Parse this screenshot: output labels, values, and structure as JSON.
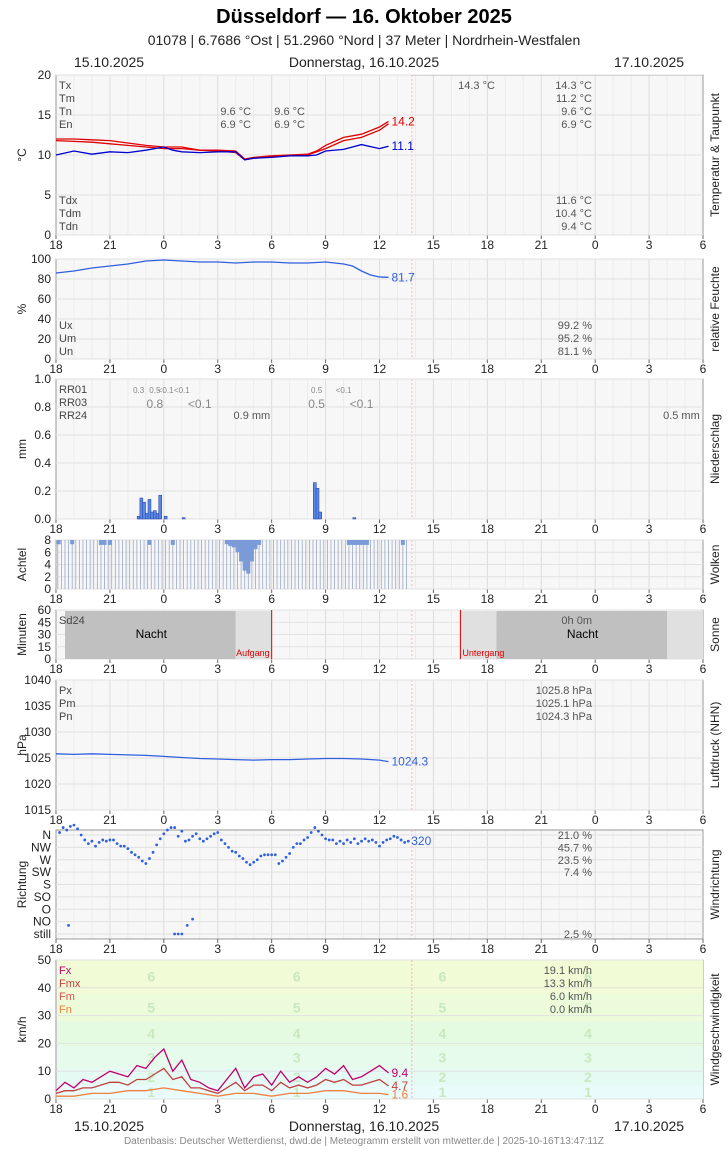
{
  "header": {
    "title": "Düsseldorf  —  16. Oktober 2025",
    "subtitle": "01078  |  6.7686 °Ost  |  51.2960 °Nord  |  37 Meter  |  Nordrhein-Westfalen",
    "date_left": "15.10.2025",
    "date_center": "Donnerstag, 16.10.2025",
    "date_right": "17.10.2025"
  },
  "footer": "Datenbasis: Deutscher Wetterdienst, dwd.de | Meteogramm erstellt von mtwetter.de | 2025-10-16T13:47:11Z",
  "x_axis": {
    "hour_ticks": [
      "18",
      "21",
      "0",
      "3",
      "6",
      "9",
      "12",
      "15",
      "18",
      "21",
      "0",
      "3",
      "6"
    ],
    "range_hours": [
      0,
      36
    ],
    "now_hours": 19.8
  },
  "colors": {
    "max": "#e00000",
    "dew": "#0000cc",
    "line_blue": "#3060e0",
    "bar_blue": "#5b86e5",
    "cloud_bar": "#7b9ad8",
    "night": "#bdbdbd",
    "wind_fx": "#c0006b",
    "wind_fmx": "#c04040",
    "wind_fm": "#e05050",
    "wind_fn": "#f08040"
  },
  "chart_data": [
    {
      "type": "line",
      "panel": "Temperatur & Taupunkt",
      "ylabel": "°C",
      "ylim": [
        0,
        20
      ],
      "yticks": [
        "0",
        "5",
        "10",
        "15",
        "20"
      ],
      "labels_left_top": [
        "Tx",
        "Tm",
        "Tn",
        "En"
      ],
      "labels_left_bottom": [
        "Tdx",
        "Tdm",
        "Tdn"
      ],
      "values_right_top": [
        "14.3 °C",
        "11.2 °C",
        "9.6 °C",
        "6.9 °C"
      ],
      "values_right_bottom": [
        "11.6 °C",
        "10.4 °C",
        "9.4 °C"
      ],
      "extra_labels": [
        {
          "text": "14.3 °C",
          "x": 23.4,
          "row": 0
        },
        {
          "text": "9.6 °C",
          "x": 10.0,
          "row": 2
        },
        {
          "text": "9.6 °C",
          "x": 13.0,
          "row": 2
        },
        {
          "text": "6.9 °C",
          "x": 10.0,
          "row": 3
        },
        {
          "text": "6.9 °C",
          "x": 13.0,
          "row": 3
        }
      ],
      "series": [
        {
          "name": "Temperatur",
          "color": "#e00000",
          "end_label": "14.2",
          "x": [
            0,
            1,
            2,
            3,
            4,
            5,
            6,
            7,
            7.5,
            8,
            9,
            10,
            10.5,
            11,
            12,
            13,
            14,
            14.5,
            15,
            16,
            17,
            18,
            18.5
          ],
          "y": [
            12.0,
            12.0,
            11.9,
            11.8,
            11.5,
            11.2,
            11.0,
            11.0,
            10.8,
            10.6,
            10.6,
            10.5,
            9.5,
            9.7,
            9.9,
            10.0,
            10.1,
            10.5,
            11.2,
            12.2,
            12.6,
            13.5,
            14.2
          ]
        },
        {
          "name": "Temperatur Min",
          "color": "#e00000",
          "x": [
            0,
            1,
            2,
            3,
            4,
            5,
            6,
            7,
            8,
            9,
            10,
            10.5,
            11,
            12,
            13,
            14,
            15,
            16,
            17,
            18,
            18.5
          ],
          "y": [
            11.8,
            11.7,
            11.6,
            11.4,
            11.2,
            11.0,
            10.8,
            10.8,
            10.6,
            10.5,
            10.3,
            9.4,
            9.6,
            9.8,
            9.9,
            10.0,
            10.8,
            11.8,
            12.2,
            13.1,
            13.9
          ]
        },
        {
          "name": "Taupunkt",
          "color": "#0000cc",
          "end_label": "11.1",
          "x": [
            0,
            1,
            2,
            3,
            4,
            5,
            6,
            6.5,
            7,
            8,
            9,
            10,
            10.5,
            11,
            12,
            13,
            14,
            14.5,
            15,
            16,
            17,
            18,
            18.5
          ],
          "y": [
            10.0,
            10.5,
            10.1,
            10.4,
            10.3,
            10.6,
            11.0,
            10.6,
            10.4,
            10.3,
            10.4,
            10.4,
            9.4,
            9.6,
            9.7,
            9.9,
            9.9,
            10.0,
            10.5,
            10.7,
            11.3,
            10.8,
            11.1
          ]
        }
      ]
    },
    {
      "type": "line",
      "panel": "relative Feuchte",
      "ylabel": "%",
      "ylim": [
        0,
        100
      ],
      "yticks": [
        "0",
        "20",
        "40",
        "60",
        "80",
        "100"
      ],
      "labels_left_bottom": [
        "Ux",
        "Um",
        "Un"
      ],
      "values_right_bottom": [
        "99.2 %",
        "95.2 %",
        "81.1 %"
      ],
      "series": [
        {
          "name": "relative Feuchte",
          "color": "#3060e0",
          "end_label": "81.7",
          "x": [
            0,
            1,
            2,
            3,
            4,
            5,
            6,
            7,
            8,
            9,
            10,
            11,
            12,
            13,
            14,
            15,
            16,
            16.5,
            17,
            17.5,
            18,
            18.5
          ],
          "y": [
            86,
            88,
            91,
            93,
            95,
            98,
            99,
            98,
            97,
            97,
            96,
            97,
            97,
            96,
            96,
            97,
            95,
            93,
            88,
            84,
            82,
            81.7
          ]
        }
      ]
    },
    {
      "type": "bar",
      "panel": "Niederschlag",
      "ylabel": "mm",
      "ylim": [
        0,
        1.0
      ],
      "yticks": [
        "0.0",
        "0.2",
        "0.4",
        "0.6",
        "0.8",
        "1.0"
      ],
      "labels_left_top": [
        "RR01",
        "RR03",
        "RR24"
      ],
      "small_labels": [
        {
          "text": "0.3",
          "x": 4.6
        },
        {
          "text": "0.5",
          "x": 5.5
        },
        {
          "text": "<0.1",
          "x": 6.1
        },
        {
          "text": "<0.1",
          "x": 7.0
        },
        {
          "text": "0.5",
          "x": 14.5
        },
        {
          "text": "<0.1",
          "x": 16.0
        }
      ],
      "rr03_labels": [
        {
          "text": "0.8",
          "x": 5.5
        },
        {
          "text": "<0.1",
          "x": 8.0
        },
        {
          "text": "0.5",
          "x": 14.5
        },
        {
          "text": "<0.1",
          "x": 17.0
        }
      ],
      "rr24_labels": [
        {
          "text": "0.9 mm",
          "x": 10.9
        },
        {
          "text": "0.5 mm",
          "x": 34.8
        }
      ],
      "x": [
        4.6,
        4.75,
        4.9,
        5.05,
        5.2,
        5.35,
        5.5,
        5.65,
        5.8,
        6.1,
        7.1,
        14.4,
        14.55,
        14.7,
        16.6
      ],
      "values": [
        0.02,
        0.15,
        0.12,
        0.04,
        0.14,
        0.05,
        0.06,
        0.04,
        0.17,
        0.02,
        0.01,
        0.26,
        0.22,
        0.05,
        0.01
      ]
    },
    {
      "type": "bar",
      "panel": "Wolken",
      "ylabel": "Achtel",
      "ylim": [
        0,
        8
      ],
      "yticks": [
        "0",
        "2",
        "4",
        "6",
        "8"
      ],
      "x_end": 19.5,
      "full_value": 8,
      "reduced": [
        {
          "x": 0.15,
          "y": 7.3
        },
        {
          "x": 0.9,
          "y": 7.3
        },
        {
          "x": 2.5,
          "y": 7.2
        },
        {
          "x": 2.7,
          "y": 7.2
        },
        {
          "x": 3.0,
          "y": 7.2
        },
        {
          "x": 5.2,
          "y": 7.2
        },
        {
          "x": 6.5,
          "y": 7.2
        },
        {
          "x": 9.5,
          "y": 7.3
        },
        {
          "x": 9.7,
          "y": 7.0
        },
        {
          "x": 9.9,
          "y": 6.8
        },
        {
          "x": 10.1,
          "y": 6.0
        },
        {
          "x": 10.3,
          "y": 4.5
        },
        {
          "x": 10.5,
          "y": 3.0
        },
        {
          "x": 10.7,
          "y": 2.5
        },
        {
          "x": 10.9,
          "y": 4.5
        },
        {
          "x": 11.1,
          "y": 6.5
        },
        {
          "x": 11.3,
          "y": 7.2
        },
        {
          "x": 16.3,
          "y": 7.2
        },
        {
          "x": 16.5,
          "y": 7.2
        },
        {
          "x": 16.7,
          "y": 7.2
        },
        {
          "x": 16.9,
          "y": 7.2
        },
        {
          "x": 17.1,
          "y": 7.2
        },
        {
          "x": 17.3,
          "y": 7.2
        },
        {
          "x": 19.3,
          "y": 7.2
        }
      ]
    },
    {
      "type": "area",
      "panel": "Sonne",
      "ylabel": "Minuten",
      "ylim": [
        0,
        60
      ],
      "yticks": [
        "0",
        "15",
        "30",
        "45",
        "60"
      ],
      "left_label": "Sd24",
      "right_value": "0h 0m",
      "night_label": "Nacht",
      "sunrise_label": "Aufgang",
      "sunset_label": "Untergang",
      "sunrise_x": 12.0,
      "sunset_x": 22.5,
      "night_spans": [
        [
          0.5,
          10.0
        ],
        [
          24.5,
          34.0
        ]
      ],
      "twilight_spans": [
        [
          10.0,
          12.0
        ],
        [
          22.5,
          24.5
        ],
        [
          34.0,
          36.0
        ]
      ]
    },
    {
      "type": "line",
      "panel": "Luftdruck (NHN)",
      "ylabel": "hPa",
      "ylim": [
        1015,
        1040
      ],
      "yticks": [
        "1015",
        "1020",
        "1025",
        "1030",
        "1035",
        "1040"
      ],
      "labels_left_top": [
        "Px",
        "Pm",
        "Pn"
      ],
      "values_right_top": [
        "1025.8 hPa",
        "1025.1 hPa",
        "1024.3 hPa"
      ],
      "series": [
        {
          "name": "Luftdruck",
          "color": "#3060e0",
          "end_label": "1024.3",
          "x": [
            0,
            1,
            2,
            3,
            4,
            5,
            6,
            7,
            8,
            9,
            10,
            11,
            12,
            13,
            14,
            15,
            16,
            17,
            18,
            18.5
          ],
          "y": [
            1025.8,
            1025.7,
            1025.8,
            1025.7,
            1025.6,
            1025.5,
            1025.3,
            1025.1,
            1024.9,
            1024.8,
            1024.7,
            1024.6,
            1024.7,
            1024.7,
            1024.8,
            1024.9,
            1024.9,
            1024.8,
            1024.6,
            1024.3
          ]
        }
      ]
    },
    {
      "type": "scatter",
      "panel": "Windrichtung",
      "ylabel": "Richtung",
      "categories": [
        "still",
        "NO",
        "O",
        "SO",
        "S",
        "SW",
        "W",
        "NW",
        "N"
      ],
      "right_values": [
        "21.0 %",
        "45.7 %",
        "23.5 %",
        "7.4 %",
        "",
        "",
        "",
        "",
        "2.5 %"
      ],
      "end_label": "320",
      "x": [
        0.2,
        0.4,
        0.6,
        0.8,
        1.0,
        1.2,
        1.4,
        1.6,
        1.8,
        2.0,
        2.2,
        2.4,
        2.6,
        2.8,
        3.0,
        3.2,
        3.4,
        3.6,
        3.8,
        4.0,
        4.2,
        4.4,
        4.6,
        4.8,
        5.0,
        5.2,
        5.4,
        5.6,
        5.8,
        6.0,
        6.2,
        6.4,
        6.6,
        6.8,
        7.0,
        7.2,
        7.4,
        7.6,
        7.8,
        8.0,
        8.2,
        8.4,
        8.6,
        8.8,
        9.0,
        9.2,
        9.4,
        9.6,
        9.8,
        10.0,
        10.2,
        10.4,
        10.6,
        10.8,
        11.0,
        11.2,
        11.4,
        11.6,
        11.8,
        12.0,
        12.2,
        12.4,
        12.6,
        12.8,
        13.0,
        13.2,
        13.4,
        13.6,
        13.8,
        14.0,
        14.2,
        14.4,
        14.6,
        14.8,
        15.0,
        15.2,
        15.4,
        15.6,
        15.8,
        16.0,
        16.2,
        16.4,
        16.6,
        16.8,
        17.0,
        17.2,
        17.4,
        17.6,
        17.8,
        18.0,
        18.2,
        18.4,
        18.6,
        18.8,
        19.0,
        19.2,
        19.4,
        19.6,
        0.7,
        6.6,
        6.8,
        7.0,
        7.3,
        7.6
      ],
      "y": [
        8.2,
        8.6,
        8.4,
        8.7,
        8.8,
        8.5,
        8.0,
        7.6,
        7.3,
        7.5,
        7.1,
        7.4,
        7.6,
        7.5,
        7.6,
        7.6,
        7.3,
        7.1,
        7.1,
        6.9,
        6.6,
        6.4,
        6.2,
        5.9,
        5.7,
        6.1,
        6.6,
        7.2,
        7.7,
        8.1,
        8.4,
        8.6,
        8.6,
        7.9,
        8.3,
        7.5,
        7.6,
        7.9,
        8.1,
        7.7,
        7.5,
        7.7,
        7.9,
        8.1,
        8.2,
        7.6,
        7.3,
        7.0,
        6.7,
        6.6,
        6.3,
        6.1,
        5.8,
        5.6,
        5.8,
        6.0,
        6.3,
        6.4,
        6.4,
        6.4,
        6.4,
        5.7,
        5.9,
        6.2,
        6.5,
        7.0,
        7.3,
        7.3,
        7.6,
        7.8,
        8.2,
        8.6,
        8.3,
        8.0,
        7.7,
        7.6,
        7.6,
        7.3,
        7.5,
        7.3,
        7.6,
        7.4,
        7.7,
        7.3,
        7.5,
        7.7,
        7.5,
        7.6,
        7.4,
        7.1,
        7.4,
        7.6,
        7.7,
        7.9,
        7.8,
        7.6,
        7.4,
        7.5,
        0.7,
        0.0,
        0.0,
        0.0,
        0.7,
        1.2
      ]
    },
    {
      "type": "line",
      "panel": "Windgeschwindigkeit",
      "ylabel": "km/h",
      "ylim": [
        0,
        50
      ],
      "yticks": [
        "0",
        "10",
        "20",
        "30",
        "40",
        "50"
      ],
      "labels_left_top": [
        "Fx",
        "Fmx",
        "Fm",
        "Fn"
      ],
      "values_right_top": [
        "19.1 km/h",
        "13.3 km/h",
        "6.0 km/h",
        "0.0 km/h"
      ],
      "beaufort_bands": [
        {
          "label": "1",
          "from": 0,
          "to": 5,
          "color": "#e9fbfb"
        },
        {
          "label": "2",
          "from": 5,
          "to": 11,
          "color": "#e6faf4"
        },
        {
          "label": "3",
          "from": 11,
          "to": 19,
          "color": "#e6fbec"
        },
        {
          "label": "4",
          "from": 19,
          "to": 28,
          "color": "#e4fbe2"
        },
        {
          "label": "5",
          "from": 28,
          "to": 38,
          "color": "#ecfbd9"
        },
        {
          "label": "6",
          "from": 38,
          "to": 50,
          "color": "#f1fbd5"
        }
      ],
      "series": [
        {
          "name": "Fx",
          "color": "#c0006b",
          "end_label": "9.4",
          "x": [
            0,
            0.5,
            1,
            1.5,
            2,
            2.5,
            3,
            3.5,
            4,
            4.5,
            5,
            5.5,
            6,
            6.5,
            7,
            7.5,
            8,
            8.5,
            9,
            9.5,
            10,
            10.5,
            11,
            11.5,
            12,
            12.5,
            13,
            13.5,
            14,
            14.5,
            15,
            15.5,
            16,
            16.5,
            17,
            17.5,
            18,
            18.5
          ],
          "y": [
            3,
            6,
            4,
            7,
            6,
            8,
            10,
            9,
            8,
            12,
            11,
            15,
            18,
            10,
            14,
            7,
            6,
            4,
            3,
            7,
            11,
            4,
            8,
            9,
            5,
            10,
            6,
            8,
            6,
            8,
            11,
            9,
            12,
            7,
            8,
            10,
            12,
            9.4
          ]
        },
        {
          "name": "Fmx",
          "color": "#c04040",
          "end_label": "4.7",
          "x": [
            0,
            0.5,
            1,
            1.5,
            2,
            2.5,
            3,
            3.5,
            4,
            4.5,
            5,
            5.5,
            6,
            6.5,
            7,
            7.5,
            8,
            8.5,
            9,
            9.5,
            10,
            10.5,
            11,
            11.5,
            12,
            12.5,
            13,
            13.5,
            14,
            14.5,
            15,
            15.5,
            16,
            16.5,
            17,
            17.5,
            18,
            18.5
          ],
          "y": [
            2,
            3,
            3,
            4,
            4,
            5,
            6,
            6,
            5,
            7,
            7,
            9,
            11,
            7,
            8,
            4,
            4,
            3,
            2,
            4,
            6,
            3,
            5,
            5,
            3,
            6,
            4,
            5,
            4,
            5,
            7,
            6,
            7,
            5,
            5,
            6,
            7,
            4.7
          ]
        },
        {
          "name": "Fn",
          "color": "#f08040",
          "end_label": "1.6",
          "x": [
            0,
            1,
            2,
            3,
            4,
            5,
            6,
            7,
            8,
            9,
            10,
            11,
            12,
            13,
            14,
            15,
            16,
            17,
            18,
            18.5
          ],
          "y": [
            1,
            1,
            2,
            2,
            3,
            3,
            4,
            3,
            2,
            1,
            2,
            2,
            1,
            2,
            2,
            3,
            3,
            2,
            2,
            1.6
          ]
        }
      ]
    }
  ]
}
